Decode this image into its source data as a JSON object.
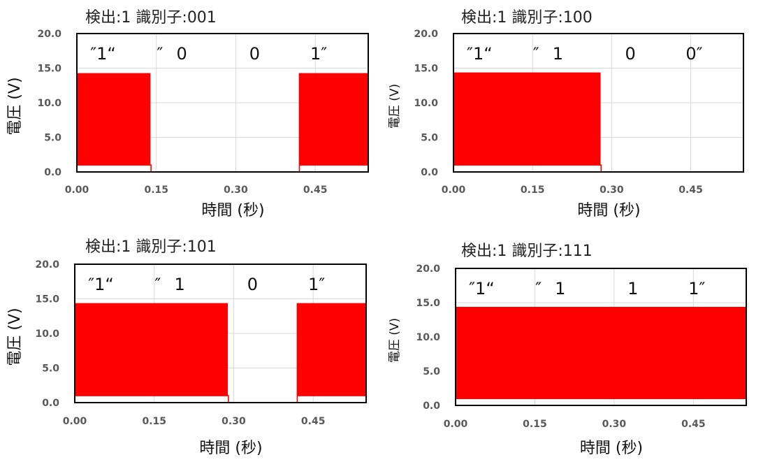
{
  "chart_data": [
    {
      "type": "line",
      "title": "検出:1 識別子:001",
      "bits_label": [
        "″1“",
        "″",
        "0",
        "0",
        "1″"
      ],
      "xlabel": "時間 (秒)",
      "ylabel": "電圧 (V)",
      "xlim": [
        0,
        0.55
      ],
      "ylim": [
        0,
        20
      ],
      "x_ticks": [
        "0.00",
        "0.15",
        "0.30",
        "0.45"
      ],
      "y_ticks": [
        "0.0",
        "5.0",
        "10.0",
        "15.0",
        "20.0"
      ],
      "grid": true,
      "series_color": "#ff0000",
      "series": [
        {
          "segments": [
            {
              "x0": 0.0,
              "x1": 0.14,
              "level": "pulse",
              "high": 14.2,
              "low": 1.0
            },
            {
              "x0": 0.14,
              "x1": 0.42,
              "level": "flat",
              "value": 0.0
            },
            {
              "x0": 0.42,
              "x1": 0.55,
              "level": "pulse",
              "high": 14.2,
              "low": 1.0
            }
          ]
        }
      ]
    },
    {
      "type": "line",
      "title": "検出:1 識別子:100",
      "bits_label": [
        "″1“",
        "″",
        "1",
        "0",
        "0″"
      ],
      "xlabel": "時間 (秒)",
      "ylabel": "電圧 (V)",
      "xlim": [
        0,
        0.55
      ],
      "ylim": [
        0,
        20
      ],
      "x_ticks": [
        "0.00",
        "0.15",
        "0.30",
        "0.45"
      ],
      "y_ticks": [
        "0.0",
        "5.0",
        "10.0",
        "15.0",
        "20.0"
      ],
      "grid": true,
      "series_color": "#ff0000",
      "series": [
        {
          "segments": [
            {
              "x0": 0.0,
              "x1": 0.28,
              "level": "pulse",
              "high": 14.3,
              "low": 1.0
            },
            {
              "x0": 0.28,
              "x1": 0.53,
              "level": "flat",
              "value": 0.0
            }
          ]
        }
      ]
    },
    {
      "type": "line",
      "title": "検出:1 識別子:101",
      "bits_label": [
        "″1“",
        "″",
        "1",
        "0",
        "1″"
      ],
      "xlabel": "時間 (秒)",
      "ylabel": "電圧 (V)",
      "xlim": [
        0,
        0.55
      ],
      "ylim": [
        0,
        20
      ],
      "x_ticks": [
        "0.00",
        "0.15",
        "0.30",
        "0.45"
      ],
      "y_ticks": [
        "0.0",
        "5.0",
        "10.0",
        "15.0",
        "20.0"
      ],
      "grid": true,
      "series_color": "#ff0000",
      "series": [
        {
          "segments": [
            {
              "x0": 0.0,
              "x1": 0.29,
              "level": "pulse",
              "high": 14.3,
              "low": 1.0
            },
            {
              "x0": 0.29,
              "x1": 0.42,
              "level": "flat",
              "value": 0.0
            },
            {
              "x0": 0.42,
              "x1": 0.55,
              "level": "pulse",
              "high": 14.3,
              "low": 1.0
            }
          ]
        }
      ]
    },
    {
      "type": "line",
      "title": "検出:1 識別子:111",
      "bits_label": [
        "″1“",
        "″",
        "1",
        "1",
        "1″"
      ],
      "xlabel": "時間 (秒)",
      "ylabel": "電圧 (V)",
      "xlim": [
        0,
        0.55
      ],
      "ylim": [
        0,
        20
      ],
      "x_ticks": [
        "0.00",
        "0.15",
        "0.30",
        "0.45"
      ],
      "y_ticks": [
        "0.0",
        "5.0",
        "10.0",
        "15.0",
        "20.0"
      ],
      "grid": true,
      "series_color": "#ff0000",
      "series": [
        {
          "segments": [
            {
              "x0": 0.0,
              "x1": 0.55,
              "level": "pulse",
              "high": 14.3,
              "low": 1.0
            }
          ]
        }
      ]
    }
  ]
}
